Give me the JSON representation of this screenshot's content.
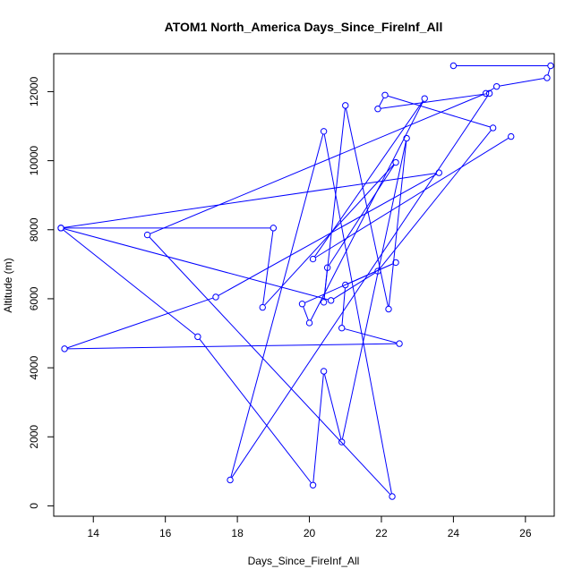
{
  "chart_data": {
    "type": "line",
    "title": "ATOM1 North_America Days_Since_FireInf_All",
    "xlabel": "Days_Since_FireInf_All",
    "ylabel": "Altitude (m)",
    "xlim": [
      12.9,
      26.8
    ],
    "ylim": [
      -300,
      13100
    ],
    "x_ticks": [
      14,
      16,
      18,
      20,
      22,
      24,
      26
    ],
    "y_ticks": [
      0,
      2000,
      4000,
      6000,
      8000,
      10000,
      12000
    ],
    "series": [
      {
        "color": "#0000ff",
        "markers": "open-circle",
        "x": [
          24.0,
          26.7,
          26.6,
          25.2,
          24.9,
          15.5,
          22.3,
          20.4,
          17.8,
          25.0,
          21.9,
          22.1,
          25.1,
          21.9,
          20.6,
          13.1,
          16.9,
          20.1,
          20.4,
          20.9,
          22.7,
          22.2,
          21.0,
          20.4,
          20.5,
          22.4,
          18.7,
          19.0,
          13.1,
          23.6,
          17.4,
          13.2,
          22.5,
          20.9,
          21.0,
          22.4,
          19.8,
          20.0,
          23.2,
          20.1,
          25.6
        ],
        "y": [
          12750,
          12750,
          12400,
          12150,
          11950,
          7850,
          270,
          10850,
          750,
          11950,
          11500,
          11900,
          10950,
          6800,
          5950,
          8050,
          4900,
          600,
          3900,
          1850,
          10650,
          5700,
          11600,
          5900,
          6900,
          9950,
          5750,
          8050,
          8050,
          9650,
          6050,
          4550,
          4700,
          5150,
          6400,
          7050,
          5850,
          5300,
          11800,
          7150,
          10700
        ]
      }
    ]
  }
}
